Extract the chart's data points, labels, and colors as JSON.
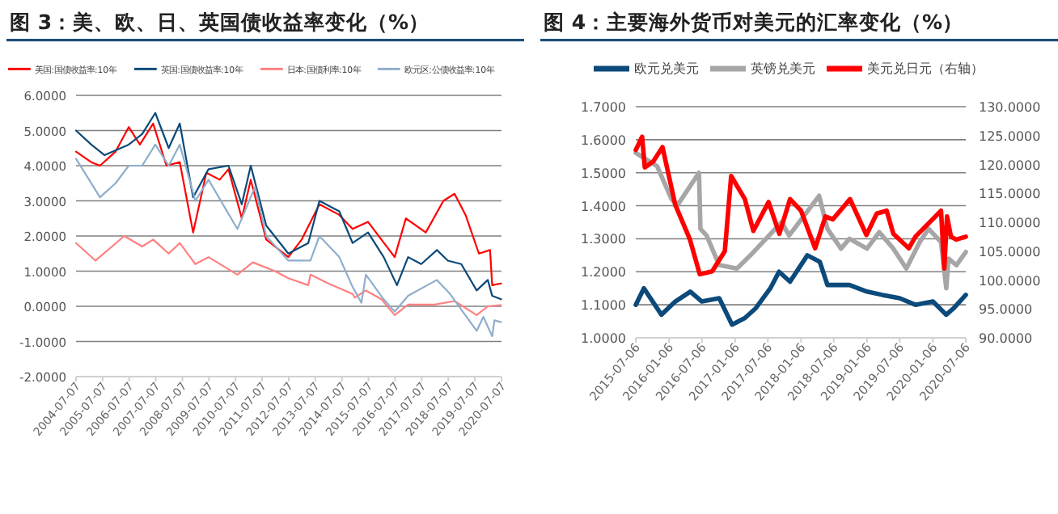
{
  "chart_data": [
    {
      "type": "line",
      "title": "图 3：美、欧、日、英国债收益率变化（%）",
      "legend": "top",
      "grid": "y",
      "xlim": [
        "2004-07-07",
        "2020-07-07"
      ],
      "xticks": [
        "2004-07-07",
        "2005-07-07",
        "2006-07-07",
        "2007-07-07",
        "2008-07-07",
        "2009-07-07",
        "2010-07-07",
        "2011-07-07",
        "2012-07-07",
        "2013-07-07",
        "2014-07-07",
        "2015-07-07",
        "2016-07-07",
        "2017-07-07",
        "2018-07-07",
        "2019-07-07",
        "2020-07-07"
      ],
      "ylim": [
        -2,
        6
      ],
      "yticks": [
        {
          "value": -2,
          "label": "-2.0000"
        },
        {
          "value": -1,
          "label": "-1.0000"
        },
        {
          "value": 0,
          "label": "0.0000"
        },
        {
          "value": 1,
          "label": "1.0000"
        },
        {
          "value": 2,
          "label": "2.0000"
        },
        {
          "value": 3,
          "label": "3.0000"
        },
        {
          "value": 4,
          "label": "4.0000"
        },
        {
          "value": 5,
          "label": "5.0000"
        },
        {
          "value": 6,
          "label": "6.0000"
        }
      ],
      "series": [
        {
          "name": "美国:国债收益率:10年",
          "color": "#ff0000",
          "x": [
            "2004-07-07",
            "2005-02",
            "2005-06",
            "2006-01",
            "2006-07",
            "2006-12",
            "2007-06",
            "2007-12",
            "2008-06",
            "2008-12",
            "2009-06",
            "2009-12",
            "2010-04",
            "2010-10",
            "2011-02",
            "2011-09",
            "2012-07",
            "2013-01",
            "2013-09",
            "2014-06",
            "2014-12",
            "2015-07",
            "2016-07",
            "2016-12",
            "2017-09",
            "2018-05",
            "2018-10",
            "2019-03",
            "2019-09",
            "2020-02",
            "2020-03",
            "2020-07"
          ],
          "values": [
            4.4,
            4.1,
            4.0,
            4.4,
            5.1,
            4.6,
            5.2,
            4.0,
            4.1,
            2.1,
            3.8,
            3.6,
            3.9,
            2.5,
            3.6,
            1.9,
            1.4,
            1.9,
            2.9,
            2.6,
            2.2,
            2.4,
            1.4,
            2.5,
            2.1,
            3.0,
            3.2,
            2.6,
            1.5,
            1.6,
            0.6,
            0.65
          ]
        },
        {
          "name": "英国:国债收益率:10年",
          "color": "#0b4a7a",
          "x": [
            "2004-07-07",
            "2005-02",
            "2005-08",
            "2006-07",
            "2007-01",
            "2007-07",
            "2008-01",
            "2008-06",
            "2008-12",
            "2009-07",
            "2010-04",
            "2010-10",
            "2011-02",
            "2011-09",
            "2012-07",
            "2013-04",
            "2013-09",
            "2014-06",
            "2014-12",
            "2015-07",
            "2016-02",
            "2016-08",
            "2017-01",
            "2017-07",
            "2018-02",
            "2018-07",
            "2019-01",
            "2019-08",
            "2020-01",
            "2020-03",
            "2020-07"
          ],
          "values": [
            5.0,
            4.6,
            4.3,
            4.6,
            4.9,
            5.5,
            4.5,
            5.2,
            3.1,
            3.9,
            4.0,
            2.9,
            4.0,
            2.3,
            1.5,
            1.8,
            3.0,
            2.7,
            1.8,
            2.1,
            1.4,
            0.6,
            1.4,
            1.2,
            1.6,
            1.3,
            1.2,
            0.45,
            0.75,
            0.3,
            0.2
          ]
        },
        {
          "name": "日本:国债利率:10年",
          "color": "#ff8080",
          "x": [
            "2004-07-07",
            "2005-04",
            "2006-05",
            "2007-01",
            "2007-06",
            "2008-01",
            "2008-06",
            "2009-01",
            "2009-07",
            "2010-08",
            "2011-03",
            "2012-01",
            "2012-07",
            "2013-04",
            "2013-05",
            "2014-01",
            "2014-12",
            "2015-01",
            "2015-06",
            "2016-01",
            "2016-07",
            "2017-01",
            "2018-01",
            "2018-10",
            "2019-08",
            "2020-01",
            "2020-07"
          ],
          "values": [
            1.8,
            1.3,
            2.0,
            1.7,
            1.9,
            1.5,
            1.8,
            1.2,
            1.4,
            0.9,
            1.25,
            1.0,
            0.8,
            0.6,
            0.9,
            0.65,
            0.35,
            0.25,
            0.45,
            0.2,
            -0.25,
            0.05,
            0.05,
            0.15,
            -0.25,
            0.0,
            0.03
          ]
        },
        {
          "name": "欧元区:公债收益率:10年",
          "color": "#8faecb",
          "x": [
            "2004-07-07",
            "2005-06",
            "2006-01",
            "2006-07",
            "2007-01",
            "2007-07",
            "2008-01",
            "2008-06",
            "2009-01",
            "2009-07",
            "2010-08",
            "2011-04",
            "2011-09",
            "2012-07",
            "2013-05",
            "2013-09",
            "2014-06",
            "2014-12",
            "2015-04",
            "2015-06",
            "2016-02",
            "2016-07",
            "2017-01",
            "2018-02",
            "2018-08",
            "2019-08",
            "2019-11",
            "2020-03",
            "2020-04",
            "2020-07"
          ],
          "values": [
            4.2,
            3.1,
            3.5,
            4.0,
            4.0,
            4.6,
            4.0,
            4.6,
            3.0,
            3.6,
            2.2,
            3.4,
            2.0,
            1.3,
            1.3,
            2.0,
            1.4,
            0.55,
            0.1,
            0.9,
            0.2,
            -0.15,
            0.3,
            0.75,
            0.35,
            -0.7,
            -0.3,
            -0.85,
            -0.4,
            -0.45
          ]
        }
      ]
    },
    {
      "type": "line",
      "title": "图 4：主要海外货币对美元的汇率变化（%）",
      "legend": "top",
      "grid": "y",
      "xlim": [
        "2015-07-06",
        "2020-07-06"
      ],
      "xticks": [
        "2015-07-06",
        "2016-01-06",
        "2016-07-06",
        "2017-01-06",
        "2017-07-06",
        "2018-01-06",
        "2018-07-06",
        "2019-01-06",
        "2019-07-06",
        "2020-01-06",
        "2020-07-06"
      ],
      "ylim": [
        1.0,
        1.7
      ],
      "yticks": [
        {
          "value": 1.0,
          "label": "1.0000"
        },
        {
          "value": 1.1,
          "label": "1.1000"
        },
        {
          "value": 1.2,
          "label": "1.2000"
        },
        {
          "value": 1.3,
          "label": "1.3000"
        },
        {
          "value": 1.4,
          "label": "1.4000"
        },
        {
          "value": 1.5,
          "label": "1.5000"
        },
        {
          "value": 1.6,
          "label": "1.6000"
        },
        {
          "value": 1.7,
          "label": "1.7000"
        }
      ],
      "y2lim": [
        90,
        130
      ],
      "y2ticks": [
        {
          "value": 90,
          "label": "90.0000"
        },
        {
          "value": 95,
          "label": "95.0000"
        },
        {
          "value": 100,
          "label": "100.0000"
        },
        {
          "value": 105,
          "label": "105.0000"
        },
        {
          "value": 110,
          "label": "110.0000"
        },
        {
          "value": 115,
          "label": "115.0000"
        },
        {
          "value": 120,
          "label": "120.0000"
        },
        {
          "value": 125,
          "label": "125.0000"
        },
        {
          "value": 130,
          "label": "130.0000"
        }
      ],
      "series": [
        {
          "name": "欧元兑美元",
          "color": "#0b4a7a",
          "x": [
            "2015-07-06",
            "2015-08-20",
            "2015-11-25",
            "2016-02-10",
            "2016-05-03",
            "2016-07-06",
            "2016-10-10",
            "2016-12-20",
            "2017-03-01",
            "2017-05-01",
            "2017-07-20",
            "2017-09-06",
            "2017-11-06",
            "2018-02-10",
            "2018-04-20",
            "2018-06-01",
            "2018-08-15",
            "2018-10-01",
            "2019-01-06",
            "2019-04-01",
            "2019-07-06",
            "2019-10-01",
            "2020-01-06",
            "2020-03-20",
            "2020-05-01",
            "2020-07-06"
          ],
          "values": [
            1.1,
            1.15,
            1.07,
            1.11,
            1.14,
            1.11,
            1.12,
            1.04,
            1.06,
            1.09,
            1.15,
            1.2,
            1.17,
            1.25,
            1.23,
            1.16,
            1.16,
            1.16,
            1.14,
            1.13,
            1.12,
            1.1,
            1.11,
            1.07,
            1.09,
            1.13
          ]
        },
        {
          "name": "英镑兑美元",
          "color": "#a6a6a6",
          "x": [
            "2015-07-06",
            "2015-11-01",
            "2016-01-20",
            "2016-02-20",
            "2016-06-20",
            "2016-06-28",
            "2016-08-01",
            "2016-10-10",
            "2017-01-16",
            "2017-04-01",
            "2017-09-20",
            "2017-11-01",
            "2018-04-16",
            "2018-06-01",
            "2018-08-15",
            "2018-10-01",
            "2019-01-06",
            "2019-03-15",
            "2019-06-01",
            "2019-08-12",
            "2019-10-25",
            "2019-12-13",
            "2020-02-20",
            "2020-03-20",
            "2020-04-01",
            "2020-05-15",
            "2020-07-06"
          ],
          "values": [
            1.56,
            1.52,
            1.42,
            1.4,
            1.5,
            1.33,
            1.31,
            1.22,
            1.21,
            1.25,
            1.35,
            1.31,
            1.43,
            1.33,
            1.27,
            1.3,
            1.27,
            1.32,
            1.27,
            1.21,
            1.29,
            1.33,
            1.29,
            1.15,
            1.24,
            1.22,
            1.26
          ]
        },
        {
          "name": "美元兑日元（右轴）",
          "color": "#ff0000",
          "axis": "y2",
          "x": [
            "2015-07-06",
            "2015-08-10",
            "2015-08-25",
            "2015-10-10",
            "2015-12-01",
            "2016-02-10",
            "2016-05-01",
            "2016-06-24",
            "2016-09-01",
            "2016-11-10",
            "2016-12-15",
            "2017-03-01",
            "2017-04-17",
            "2017-07-10",
            "2017-09-08",
            "2017-11-06",
            "2018-01-06",
            "2018-03-25",
            "2018-05-21",
            "2018-07-01",
            "2018-10-04",
            "2019-01-03",
            "2019-03-01",
            "2019-04-25",
            "2019-06-01",
            "2019-08-26",
            "2019-10-01",
            "2020-02-20",
            "2020-03-09",
            "2020-03-24",
            "2020-04-15",
            "2020-05-15",
            "2020-07-06"
          ],
          "values": [
            122.5,
            124.8,
            119.5,
            120.5,
            123,
            113,
            107,
            101,
            101.5,
            105,
            118,
            114,
            108.5,
            113.5,
            108,
            114,
            112,
            105.5,
            111,
            110.5,
            114,
            107.8,
            111.5,
            112,
            108,
            105.5,
            107.5,
            112,
            102,
            111,
            107.5,
            107,
            107.5
          ]
        }
      ]
    }
  ]
}
